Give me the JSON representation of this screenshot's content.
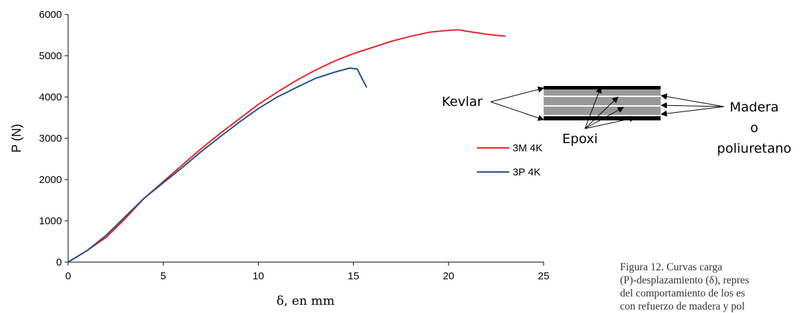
{
  "chart_data": {
    "type": "line",
    "xlabel": "δ, en mm",
    "ylabel": "P (N)",
    "xlim": [
      0,
      25
    ],
    "ylim": [
      0,
      6000
    ],
    "xticks": [
      "0",
      "5",
      "10",
      "15",
      "20",
      "25"
    ],
    "yticks": [
      "0",
      "1000",
      "2000",
      "3000",
      "4000",
      "5000",
      "6000"
    ],
    "grid": false,
    "legend_position": "center-right",
    "series": [
      {
        "name": "3M 4K",
        "color": "#e8212b",
        "points": [
          [
            0,
            0
          ],
          [
            1,
            280
          ],
          [
            2,
            600
          ],
          [
            3,
            1050
          ],
          [
            4,
            1550
          ],
          [
            5,
            1950
          ],
          [
            6,
            2350
          ],
          [
            7,
            2750
          ],
          [
            8,
            3120
          ],
          [
            9,
            3470
          ],
          [
            10,
            3820
          ],
          [
            11,
            4120
          ],
          [
            12,
            4400
          ],
          [
            13,
            4650
          ],
          [
            14,
            4870
          ],
          [
            15,
            5050
          ],
          [
            16,
            5200
          ],
          [
            17,
            5350
          ],
          [
            18,
            5470
          ],
          [
            19,
            5570
          ],
          [
            20,
            5615
          ],
          [
            20.5,
            5630
          ],
          [
            21,
            5590
          ],
          [
            22,
            5520
          ],
          [
            23,
            5470
          ]
        ]
      },
      {
        "name": "3P 4K",
        "color": "#1f4e8c",
        "points": [
          [
            0,
            0
          ],
          [
            1,
            280
          ],
          [
            2,
            650
          ],
          [
            3,
            1100
          ],
          [
            4,
            1550
          ],
          [
            5,
            1920
          ],
          [
            6,
            2290
          ],
          [
            7,
            2680
          ],
          [
            8,
            3040
          ],
          [
            9,
            3390
          ],
          [
            10,
            3720
          ],
          [
            11,
            4000
          ],
          [
            12,
            4230
          ],
          [
            13,
            4450
          ],
          [
            14,
            4600
          ],
          [
            14.8,
            4700
          ],
          [
            15.2,
            4680
          ],
          [
            15.45,
            4450
          ],
          [
            15.7,
            4230
          ]
        ]
      }
    ]
  },
  "diagram": {
    "labels": {
      "kevlar": "Kevlar",
      "epoxi": "Epoxi",
      "madera": "Madera",
      "o": "o",
      "poliuretano": "poliuretano"
    },
    "colors": {
      "kevlar": "#000000",
      "core": "#999999",
      "epoxi": "#ffffff"
    }
  },
  "caption": {
    "line1": "Figura 12. Curvas carga",
    "line2": "(P)-desplazamiento (δ), repres",
    "line3": "del comportamiento de los es",
    "line4": "con refuerzo de madera y pol"
  }
}
